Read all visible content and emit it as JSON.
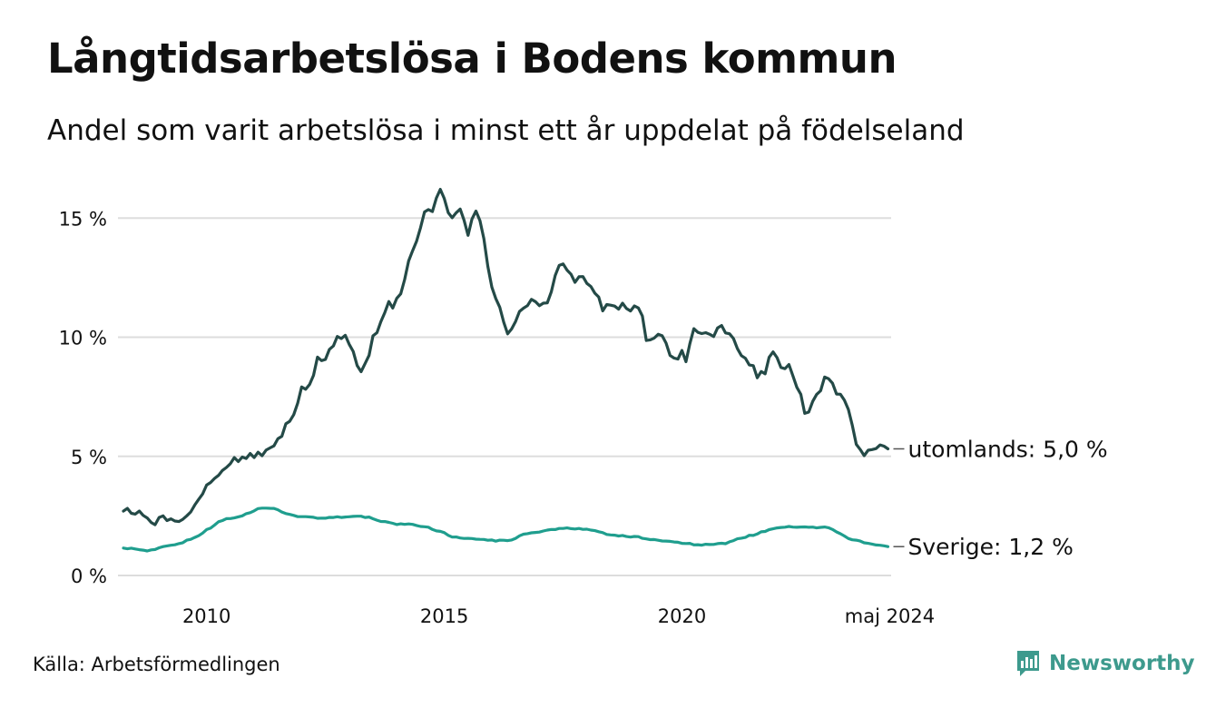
{
  "header": {
    "title": "Långtidsarbetslösa i Bodens kommun",
    "subtitle": "Andel som varit arbetslösa i minst ett år uppdelat på födelseland"
  },
  "footer": {
    "source": "Källa: Arbetsförmedlingen",
    "brand": "Newsworthy"
  },
  "colors": {
    "utomlands": "#244a47",
    "sverige": "#1f9e8e",
    "grid": "#dddddd",
    "brand": "#3d9a8d"
  },
  "chart_data": {
    "type": "line",
    "title": "Långtidsarbetslösa i Bodens kommun",
    "xlabel": "",
    "ylabel": "",
    "x_start": [
      2008,
      4
    ],
    "x_end": [
      2024,
      5
    ],
    "xlim": [
      2008.25,
      2024.4
    ],
    "ylim": [
      0,
      17
    ],
    "yticks": [
      0,
      5,
      10,
      15
    ],
    "ytick_labels": [
      "0 %",
      "5 %",
      "10 %",
      "15 %"
    ],
    "xticks": [
      2010,
      2015,
      2020,
      2024.37
    ],
    "xtick_labels": [
      "2010",
      "2015",
      "2020",
      "maj 2024"
    ],
    "grid": true,
    "series": [
      {
        "name": "utomlands",
        "end_label": "utomlands: 5,0 %",
        "anchors": [
          [
            2008.3,
            2.7
          ],
          [
            2008.5,
            2.6
          ],
          [
            2008.75,
            2.5
          ],
          [
            2008.85,
            2.1
          ],
          [
            2009.0,
            2.5
          ],
          [
            2009.2,
            2.2
          ],
          [
            2009.4,
            2.4
          ],
          [
            2009.6,
            2.5
          ],
          [
            2009.8,
            3.2
          ],
          [
            2009.95,
            3.6
          ],
          [
            2010.1,
            4.1
          ],
          [
            2010.3,
            4.4
          ],
          [
            2010.5,
            4.8
          ],
          [
            2010.7,
            4.8
          ],
          [
            2010.9,
            5.0
          ],
          [
            2011.1,
            5.1
          ],
          [
            2011.3,
            5.4
          ],
          [
            2011.5,
            5.6
          ],
          [
            2011.7,
            6.4
          ],
          [
            2011.9,
            7.1
          ],
          [
            2012.0,
            7.8
          ],
          [
            2012.2,
            8.2
          ],
          [
            2012.35,
            9.3
          ],
          [
            2012.45,
            8.8
          ],
          [
            2012.6,
            9.6
          ],
          [
            2012.8,
            10.1
          ],
          [
            2012.95,
            10.0
          ],
          [
            2013.1,
            9.2
          ],
          [
            2013.2,
            8.5
          ],
          [
            2013.35,
            8.9
          ],
          [
            2013.5,
            10.0
          ],
          [
            2013.65,
            10.6
          ],
          [
            2013.8,
            11.4
          ],
          [
            2013.95,
            11.2
          ],
          [
            2014.1,
            12.0
          ],
          [
            2014.3,
            13.4
          ],
          [
            2014.5,
            14.7
          ],
          [
            2014.65,
            15.4
          ],
          [
            2014.75,
            15.1
          ],
          [
            2014.9,
            16.2
          ],
          [
            2015.05,
            15.5
          ],
          [
            2015.2,
            15.0
          ],
          [
            2015.35,
            15.3
          ],
          [
            2015.5,
            14.3
          ],
          [
            2015.6,
            15.0
          ],
          [
            2015.7,
            15.2
          ],
          [
            2015.8,
            14.6
          ],
          [
            2015.9,
            13.0
          ],
          [
            2016.0,
            12.0
          ],
          [
            2016.1,
            11.5
          ],
          [
            2016.2,
            11.2
          ],
          [
            2016.3,
            10.2
          ],
          [
            2016.45,
            10.3
          ],
          [
            2016.6,
            11.0
          ],
          [
            2016.75,
            11.4
          ],
          [
            2016.9,
            11.6
          ],
          [
            2017.0,
            11.2
          ],
          [
            2017.2,
            11.4
          ],
          [
            2017.35,
            12.7
          ],
          [
            2017.45,
            13.3
          ],
          [
            2017.6,
            12.9
          ],
          [
            2017.75,
            12.4
          ],
          [
            2017.9,
            12.5
          ],
          [
            2018.05,
            12.1
          ],
          [
            2018.2,
            11.8
          ],
          [
            2018.35,
            11.1
          ],
          [
            2018.5,
            11.5
          ],
          [
            2018.65,
            11.2
          ],
          [
            2018.8,
            11.3
          ],
          [
            2018.95,
            11.2
          ],
          [
            2019.1,
            11.3
          ],
          [
            2019.25,
            10.0
          ],
          [
            2019.4,
            10.1
          ],
          [
            2019.55,
            10.0
          ],
          [
            2019.7,
            9.5
          ],
          [
            2019.85,
            9.2
          ],
          [
            2020.0,
            9.3
          ],
          [
            2020.1,
            8.9
          ],
          [
            2020.2,
            10.3
          ],
          [
            2020.35,
            10.0
          ],
          [
            2020.5,
            10.2
          ],
          [
            2020.65,
            10.0
          ],
          [
            2020.8,
            10.5
          ],
          [
            2020.95,
            10.3
          ],
          [
            2021.1,
            10.0
          ],
          [
            2021.2,
            9.3
          ],
          [
            2021.35,
            9.0
          ],
          [
            2021.5,
            8.9
          ],
          [
            2021.6,
            8.3
          ],
          [
            2021.75,
            8.6
          ],
          [
            2021.9,
            9.6
          ],
          [
            2022.0,
            9.2
          ],
          [
            2022.1,
            8.8
          ],
          [
            2022.25,
            8.9
          ],
          [
            2022.35,
            8.4
          ],
          [
            2022.5,
            7.6
          ],
          [
            2022.6,
            6.8
          ],
          [
            2022.75,
            7.2
          ],
          [
            2022.9,
            7.8
          ],
          [
            2023.0,
            8.4
          ],
          [
            2023.15,
            8.0
          ],
          [
            2023.3,
            7.6
          ],
          [
            2023.45,
            7.2
          ],
          [
            2023.55,
            6.4
          ],
          [
            2023.65,
            5.6
          ],
          [
            2023.8,
            5.2
          ],
          [
            2023.95,
            5.1
          ],
          [
            2024.05,
            5.3
          ],
          [
            2024.2,
            5.5
          ],
          [
            2024.3,
            5.6
          ],
          [
            2024.37,
            5.0
          ]
        ]
      },
      {
        "name": "Sverige",
        "end_label": "Sverige: 1,2 %",
        "anchors": [
          [
            2008.3,
            1.15
          ],
          [
            2008.5,
            1.1
          ],
          [
            2008.75,
            1.05
          ],
          [
            2009.0,
            1.15
          ],
          [
            2009.2,
            1.25
          ],
          [
            2009.5,
            1.4
          ],
          [
            2009.8,
            1.6
          ],
          [
            2010.0,
            1.9
          ],
          [
            2010.3,
            2.3
          ],
          [
            2010.6,
            2.45
          ],
          [
            2010.9,
            2.6
          ],
          [
            2011.1,
            2.8
          ],
          [
            2011.35,
            2.85
          ],
          [
            2011.6,
            2.65
          ],
          [
            2011.9,
            2.5
          ],
          [
            2012.2,
            2.45
          ],
          [
            2012.5,
            2.4
          ],
          [
            2012.8,
            2.45
          ],
          [
            2013.1,
            2.5
          ],
          [
            2013.4,
            2.45
          ],
          [
            2013.7,
            2.25
          ],
          [
            2014.0,
            2.15
          ],
          [
            2014.3,
            2.15
          ],
          [
            2014.6,
            2.05
          ],
          [
            2014.9,
            1.85
          ],
          [
            2015.2,
            1.6
          ],
          [
            2015.5,
            1.55
          ],
          [
            2015.8,
            1.5
          ],
          [
            2016.1,
            1.45
          ],
          [
            2016.4,
            1.5
          ],
          [
            2016.7,
            1.75
          ],
          [
            2017.0,
            1.85
          ],
          [
            2017.3,
            1.95
          ],
          [
            2017.6,
            2.0
          ],
          [
            2017.9,
            1.95
          ],
          [
            2018.2,
            1.85
          ],
          [
            2018.5,
            1.7
          ],
          [
            2018.8,
            1.65
          ],
          [
            2019.1,
            1.6
          ],
          [
            2019.4,
            1.5
          ],
          [
            2019.7,
            1.45
          ],
          [
            2020.0,
            1.35
          ],
          [
            2020.3,
            1.3
          ],
          [
            2020.6,
            1.3
          ],
          [
            2020.9,
            1.35
          ],
          [
            2021.2,
            1.55
          ],
          [
            2021.5,
            1.7
          ],
          [
            2021.8,
            1.9
          ],
          [
            2022.1,
            2.05
          ],
          [
            2022.4,
            2.05
          ],
          [
            2022.7,
            2.0
          ],
          [
            2023.0,
            2.05
          ],
          [
            2023.2,
            1.9
          ],
          [
            2023.4,
            1.65
          ],
          [
            2023.6,
            1.5
          ],
          [
            2023.8,
            1.4
          ],
          [
            2024.0,
            1.3
          ],
          [
            2024.2,
            1.25
          ],
          [
            2024.37,
            1.2
          ]
        ]
      }
    ]
  }
}
